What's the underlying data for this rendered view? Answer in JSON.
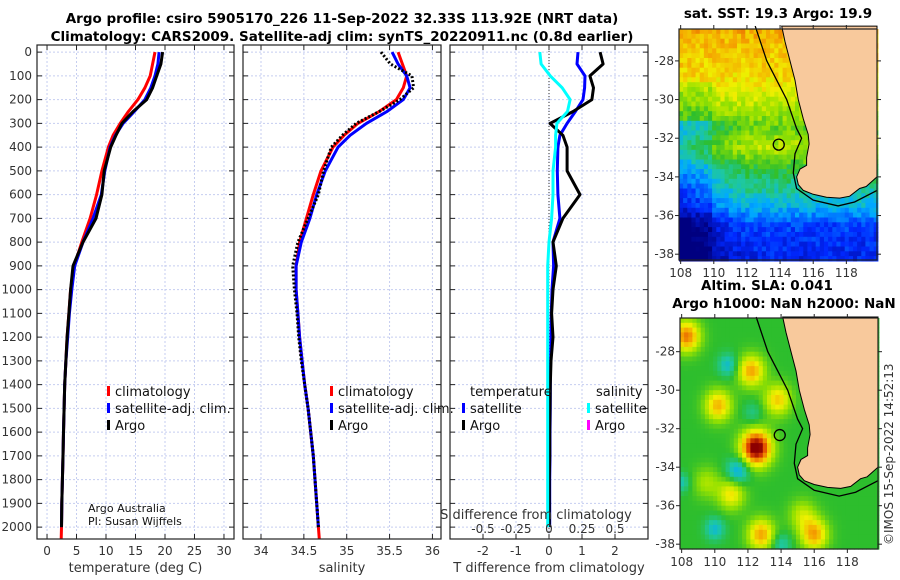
{
  "titles": {
    "line1": "Argo profile: csiro 5905170_226 11-Sep-2022 32.33S 113.92E (NRT data)",
    "line2": "Climatology: CARS2009. Satellite-adj clim: synTS_20220911.nc (0.8d earlier)"
  },
  "credits": {
    "org": "Argo Australia",
    "pi": "PI: Susan Wijffels",
    "stamp": "©IMOS 15-Sep-2022 14:52:13"
  },
  "colors": {
    "climatology": "#ff0000",
    "satellite": "#0000ff",
    "argo": "#000000",
    "sal_satellite": "#00ffff",
    "sal_argo": "#ff00ff"
  },
  "chart_data": [
    {
      "type": "line",
      "name": "temperature-profile",
      "xlabel": "temperature (deg C)",
      "ylabel": "depth",
      "xlim": [
        -1.7,
        31.7
      ],
      "ylim": [
        2050,
        -30
      ],
      "grid": true,
      "xticks": [
        0,
        5,
        10,
        15,
        20,
        25,
        30
      ],
      "yticks": [
        0,
        100,
        200,
        300,
        400,
        500,
        600,
        700,
        800,
        900,
        1000,
        1100,
        1200,
        1300,
        1400,
        1500,
        1600,
        1700,
        1800,
        1900,
        2000
      ],
      "depth": [
        0,
        50,
        100,
        150,
        200,
        250,
        300,
        350,
        400,
        500,
        600,
        700,
        800,
        900,
        1000,
        1100,
        1200,
        1300,
        1400,
        1500,
        1600,
        1700,
        1800,
        1900,
        2000,
        2050
      ],
      "series": [
        {
          "name": "climatology",
          "color": "#ff0000",
          "values": [
            18.3,
            17.9,
            17.5,
            16.6,
            15.4,
            13.8,
            12.4,
            11.2,
            10.4,
            9.3,
            8.4,
            7.3,
            5.9,
            4.6,
            4.0,
            3.7,
            3.4,
            3.2,
            3.0,
            2.9,
            2.8,
            2.7,
            2.6,
            2.5,
            2.45,
            2.4
          ]
        },
        {
          "name": "satellite-adj. clim.",
          "color": "#0000ff",
          "values": [
            19.0,
            18.8,
            18.3,
            17.6,
            16.6,
            14.8,
            12.9,
            11.6,
            10.7,
            9.8,
            9.2,
            7.8,
            6.1,
            4.7,
            4.2,
            3.8,
            3.5,
            3.2,
            3.0,
            2.9,
            2.8,
            2.7,
            2.6,
            2.5,
            2.45,
            null
          ]
        },
        {
          "name": "Argo",
          "color": "#000000",
          "values": [
            19.6,
            19.3,
            18.6,
            17.9,
            16.9,
            14.6,
            12.7,
            11.7,
            10.8,
            9.7,
            9.3,
            8.3,
            6.1,
            4.4,
            4.0,
            3.7,
            3.4,
            3.2,
            3.0,
            2.9,
            2.8,
            2.7,
            2.6,
            2.5,
            2.45,
            null
          ]
        }
      ],
      "legend": {
        "placement": "center-right",
        "labels": [
          "climatology",
          "satellite-adj. clim.",
          "Argo"
        ]
      }
    },
    {
      "type": "line",
      "name": "salinity-profile",
      "xlabel": "salinity",
      "ylabel": "depth",
      "xlim": [
        33.79,
        36.1
      ],
      "ylim": [
        2050,
        -30
      ],
      "grid": true,
      "xticks": [
        34,
        34.5,
        35,
        35.5,
        36
      ],
      "depth": [
        0,
        50,
        100,
        150,
        200,
        250,
        300,
        350,
        400,
        500,
        600,
        700,
        800,
        900,
        1000,
        1100,
        1200,
        1300,
        1400,
        1500,
        1600,
        1700,
        1800,
        1900,
        2000,
        2050
      ],
      "series": [
        {
          "name": "climatology",
          "color": "#ff0000",
          "values": [
            35.6,
            35.65,
            35.7,
            35.66,
            35.58,
            35.38,
            35.13,
            34.97,
            34.84,
            34.7,
            34.61,
            34.53,
            34.45,
            34.41,
            34.41,
            34.43,
            34.45,
            34.48,
            34.51,
            34.55,
            34.58,
            34.61,
            34.63,
            34.65,
            34.67,
            34.68
          ]
        },
        {
          "name": "satellite-adj. clim.",
          "color": "#0000ff",
          "values": [
            35.53,
            35.6,
            35.7,
            35.74,
            35.66,
            35.47,
            35.23,
            35.04,
            34.9,
            34.75,
            34.65,
            34.57,
            34.47,
            34.41,
            34.41,
            34.43,
            34.45,
            34.48,
            34.51,
            34.55,
            34.58,
            34.61,
            34.63,
            34.65,
            34.67,
            null
          ]
        },
        {
          "name": "Argo",
          "color": "#000000",
          "dotted": true,
          "values": [
            35.4,
            35.51,
            35.76,
            35.78,
            35.62,
            35.38,
            35.11,
            34.95,
            34.82,
            34.73,
            34.67,
            34.55,
            34.43,
            34.37,
            34.39,
            34.42,
            34.44,
            34.47,
            34.51,
            34.55,
            34.58,
            34.61,
            34.63,
            34.65,
            34.67,
            null
          ]
        }
      ],
      "legend": {
        "placement": "center-right",
        "labels": [
          "climatology",
          "satellite-adj. clim.",
          "Argo"
        ]
      }
    },
    {
      "type": "line",
      "name": "difference-profile",
      "xlabel": "T difference from climatology",
      "x2label": "S difference from climatology",
      "xlim": [
        -3,
        3
      ],
      "x2lim": [
        -0.75,
        0.75
      ],
      "ylim": [
        2050,
        -30
      ],
      "grid": true,
      "xticks": [
        -2,
        -1,
        0,
        1,
        2
      ],
      "x2ticks": [
        -0.5,
        -0.25,
        0,
        0.25,
        0.5
      ],
      "x2ticklabels": [
        "-0.5",
        "-0.25",
        "0",
        "0.25",
        "0.5"
      ],
      "depth": [
        0,
        50,
        100,
        150,
        200,
        250,
        300,
        350,
        400,
        500,
        600,
        700,
        800,
        900,
        1000,
        1100,
        1200,
        1300,
        1400,
        1500,
        1600,
        1700,
        1800,
        1900,
        2000,
        2050
      ],
      "series": [
        {
          "name": "temperature satellite",
          "axis": "T",
          "color": "#0000ff",
          "values": [
            0.88,
            0.85,
            1.09,
            1.08,
            1.03,
            0.8,
            0.55,
            0.33,
            0.27,
            0.25,
            0.27,
            0.33,
            0.12,
            0.14,
            0.09,
            0.07,
            0.06,
            0.05,
            0.04,
            0.04,
            0.03,
            0.03,
            0.02,
            0.02,
            0.02,
            null
          ]
        },
        {
          "name": "temperature Argo",
          "axis": "T",
          "color": "#000000",
          "values": [
            1.55,
            1.64,
            1.24,
            1.35,
            1.3,
            0.73,
            0.03,
            0.42,
            0.55,
            0.55,
            0.94,
            0.42,
            0.12,
            0.22,
            0.12,
            0.08,
            0.12,
            0.06,
            0.04,
            0.03,
            0.02,
            0.02,
            0.01,
            0.01,
            0.01,
            null
          ]
        },
        {
          "name": "salinity satellite",
          "axis": "S",
          "color": "#00ffff",
          "values": [
            -0.07,
            -0.06,
            0.01,
            0.1,
            0.16,
            0.14,
            0.06,
            0.05,
            0.05,
            0.03,
            0.03,
            0.02,
            0.0,
            -0.01,
            -0.01,
            -0.01,
            -0.01,
            -0.01,
            -0.01,
            -0.01,
            -0.01,
            -0.01,
            -0.01,
            -0.01,
            -0.01,
            null
          ]
        }
      ],
      "legend": {
        "placement": "center",
        "temperature_header": "temperature",
        "salinity_header": "salinity",
        "t_labels": [
          "satellite",
          "Argo"
        ],
        "s_labels": [
          "satellite",
          "Argo"
        ]
      }
    }
  ],
  "maps": {
    "sst": {
      "title": "sat. SST: 19.3 Argo: 19.9"
    },
    "sla": {
      "title1": "Altim. SLA: 0.041",
      "title2": "Argo h1000: NaN h2000: NaN"
    },
    "lon_ticks": [
      108,
      110,
      112,
      114,
      116,
      118
    ],
    "lat_ticks": [
      -28,
      -30,
      -32,
      -34,
      -36,
      -38
    ],
    "lat_ticklabels": [
      "-28",
      "-30",
      "-32",
      "-34",
      "-36",
      "-38"
    ],
    "float_position": {
      "lon": 113.92,
      "lat": -32.33
    }
  }
}
